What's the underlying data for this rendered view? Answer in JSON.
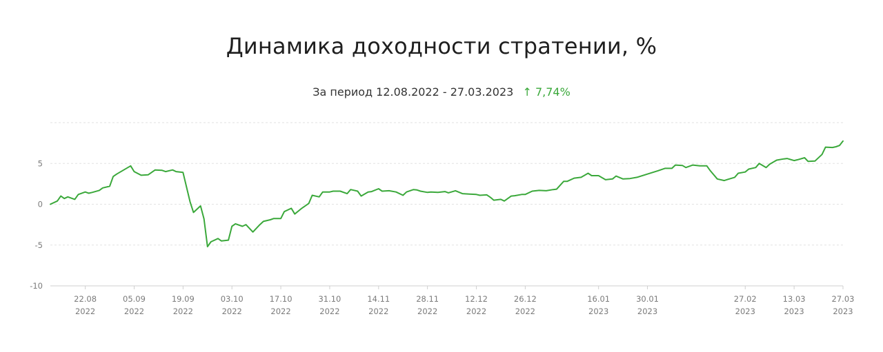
{
  "header": {
    "title": "Динамика доходности стратении, %",
    "period_label": "За период 12.08.2022 - 27.03.2023",
    "change_arrow": "↑",
    "change_value": "7,74%"
  },
  "colors": {
    "line": "#3aa83a",
    "grid": "#e2e2e2",
    "tick_text": "#7a7a7a",
    "positive": "#3aa83a"
  },
  "chart_data": {
    "type": "line",
    "title": "Динамика доходности стратении, %",
    "xlabel": "",
    "ylabel": "",
    "ylim": [
      -10,
      10
    ],
    "y_ticks": [
      -10,
      -5,
      0,
      5
    ],
    "grid": true,
    "x_domain": [
      "2022-08-12",
      "2023-03-27"
    ],
    "x_ticks": [
      {
        "date": "2022-08-22",
        "line1": "22.08",
        "line2": "2022"
      },
      {
        "date": "2022-09-05",
        "line1": "05.09",
        "line2": "2022"
      },
      {
        "date": "2022-09-19",
        "line1": "19.09",
        "line2": "2022"
      },
      {
        "date": "2022-10-03",
        "line1": "03.10",
        "line2": "2022"
      },
      {
        "date": "2022-10-17",
        "line1": "17.10",
        "line2": "2022"
      },
      {
        "date": "2022-10-31",
        "line1": "31.10",
        "line2": "2022"
      },
      {
        "date": "2022-11-14",
        "line1": "14.11",
        "line2": "2022"
      },
      {
        "date": "2022-11-28",
        "line1": "28.11",
        "line2": "2022"
      },
      {
        "date": "2022-12-12",
        "line1": "12.12",
        "line2": "2022"
      },
      {
        "date": "2022-12-26",
        "line1": "26.12",
        "line2": "2022"
      },
      {
        "date": "2023-01-16",
        "line1": "16.01",
        "line2": "2023"
      },
      {
        "date": "2023-01-30",
        "line1": "30.01",
        "line2": "2023"
      },
      {
        "date": "2023-02-27",
        "line1": "27.02",
        "line2": "2023"
      },
      {
        "date": "2023-03-13",
        "line1": "13.03",
        "line2": "2023"
      },
      {
        "date": "2023-03-27",
        "line1": "27.03",
        "line2": "2023"
      }
    ],
    "series": [
      {
        "points": [
          [
            "2022-08-12",
            0.0
          ],
          [
            "2022-08-14",
            0.4
          ],
          [
            "2022-08-15",
            1.0
          ],
          [
            "2022-08-16",
            0.7
          ],
          [
            "2022-08-17",
            0.9
          ],
          [
            "2022-08-19",
            0.6
          ],
          [
            "2022-08-20",
            1.2
          ],
          [
            "2022-08-22",
            1.5
          ],
          [
            "2022-08-23",
            1.35
          ],
          [
            "2022-08-24",
            1.45
          ],
          [
            "2022-08-26",
            1.7
          ],
          [
            "2022-08-27",
            2.0
          ],
          [
            "2022-08-29",
            2.2
          ],
          [
            "2022-08-30",
            3.4
          ],
          [
            "2022-08-31",
            3.7
          ],
          [
            "2022-09-04",
            4.7
          ],
          [
            "2022-09-05",
            4.0
          ],
          [
            "2022-09-07",
            3.55
          ],
          [
            "2022-09-09",
            3.6
          ],
          [
            "2022-09-11",
            4.2
          ],
          [
            "2022-09-13",
            4.15
          ],
          [
            "2022-09-14",
            4.0
          ],
          [
            "2022-09-16",
            4.2
          ],
          [
            "2022-09-17",
            4.0
          ],
          [
            "2022-09-19",
            3.9
          ],
          [
            "2022-09-21",
            0.3
          ],
          [
            "2022-09-22",
            -1.0
          ],
          [
            "2022-09-24",
            -0.2
          ],
          [
            "2022-09-25",
            -1.8
          ],
          [
            "2022-09-26",
            -5.2
          ],
          [
            "2022-09-27",
            -4.6
          ],
          [
            "2022-09-29",
            -4.2
          ],
          [
            "2022-09-30",
            -4.5
          ],
          [
            "2022-10-02",
            -4.4
          ],
          [
            "2022-10-03",
            -2.7
          ],
          [
            "2022-10-04",
            -2.4
          ],
          [
            "2022-10-06",
            -2.7
          ],
          [
            "2022-10-07",
            -2.5
          ],
          [
            "2022-10-09",
            -3.4
          ],
          [
            "2022-10-11",
            -2.5
          ],
          [
            "2022-10-12",
            -2.1
          ],
          [
            "2022-10-14",
            -1.9
          ],
          [
            "2022-10-15",
            -1.75
          ],
          [
            "2022-10-17",
            -1.75
          ],
          [
            "2022-10-18",
            -0.9
          ],
          [
            "2022-10-20",
            -0.5
          ],
          [
            "2022-10-21",
            -1.2
          ],
          [
            "2022-10-23",
            -0.5
          ],
          [
            "2022-10-25",
            0.1
          ],
          [
            "2022-10-26",
            1.1
          ],
          [
            "2022-10-28",
            0.9
          ],
          [
            "2022-10-29",
            1.5
          ],
          [
            "2022-10-31",
            1.5
          ],
          [
            "2022-11-01",
            1.6
          ],
          [
            "2022-11-03",
            1.6
          ],
          [
            "2022-11-05",
            1.3
          ],
          [
            "2022-11-06",
            1.8
          ],
          [
            "2022-11-08",
            1.6
          ],
          [
            "2022-11-09",
            1.0
          ],
          [
            "2022-11-11",
            1.5
          ],
          [
            "2022-11-12",
            1.55
          ],
          [
            "2022-11-14",
            1.9
          ],
          [
            "2022-11-15",
            1.6
          ],
          [
            "2022-11-17",
            1.65
          ],
          [
            "2022-11-19",
            1.5
          ],
          [
            "2022-11-21",
            1.1
          ],
          [
            "2022-11-22",
            1.5
          ],
          [
            "2022-11-24",
            1.8
          ],
          [
            "2022-11-25",
            1.75
          ],
          [
            "2022-11-26",
            1.6
          ],
          [
            "2022-11-28",
            1.45
          ],
          [
            "2022-11-29",
            1.5
          ],
          [
            "2022-12-01",
            1.45
          ],
          [
            "2022-12-03",
            1.55
          ],
          [
            "2022-12-04",
            1.4
          ],
          [
            "2022-12-06",
            1.65
          ],
          [
            "2022-12-08",
            1.3
          ],
          [
            "2022-12-10",
            1.25
          ],
          [
            "2022-12-12",
            1.2
          ],
          [
            "2022-12-13",
            1.1
          ],
          [
            "2022-12-15",
            1.15
          ],
          [
            "2022-12-16",
            0.85
          ],
          [
            "2022-12-17",
            0.5
          ],
          [
            "2022-12-19",
            0.6
          ],
          [
            "2022-12-20",
            0.4
          ],
          [
            "2022-12-22",
            1.0
          ],
          [
            "2022-12-23",
            1.05
          ],
          [
            "2022-12-25",
            1.2
          ],
          [
            "2022-12-26",
            1.2
          ],
          [
            "2022-12-28",
            1.6
          ],
          [
            "2022-12-30",
            1.7
          ],
          [
            "2023-01-01",
            1.65
          ],
          [
            "2023-01-03",
            1.8
          ],
          [
            "2023-01-04",
            1.85
          ],
          [
            "2023-01-06",
            2.8
          ],
          [
            "2023-01-07",
            2.8
          ],
          [
            "2023-01-09",
            3.2
          ],
          [
            "2023-01-11",
            3.3
          ],
          [
            "2023-01-13",
            3.8
          ],
          [
            "2023-01-14",
            3.5
          ],
          [
            "2023-01-16",
            3.5
          ],
          [
            "2023-01-18",
            3.0
          ],
          [
            "2023-01-20",
            3.1
          ],
          [
            "2023-01-21",
            3.45
          ],
          [
            "2023-01-23",
            3.1
          ],
          [
            "2023-01-25",
            3.15
          ],
          [
            "2023-01-27",
            3.3
          ],
          [
            "2023-01-30",
            3.7
          ],
          [
            "2023-02-02",
            4.1
          ],
          [
            "2023-02-04",
            4.4
          ],
          [
            "2023-02-06",
            4.4
          ],
          [
            "2023-02-07",
            4.8
          ],
          [
            "2023-02-09",
            4.75
          ],
          [
            "2023-02-10",
            4.5
          ],
          [
            "2023-02-12",
            4.8
          ],
          [
            "2023-02-14",
            4.7
          ],
          [
            "2023-02-16",
            4.7
          ],
          [
            "2023-02-17",
            4.1
          ],
          [
            "2023-02-19",
            3.1
          ],
          [
            "2023-02-21",
            2.9
          ],
          [
            "2023-02-22",
            3.05
          ],
          [
            "2023-02-24",
            3.3
          ],
          [
            "2023-02-25",
            3.8
          ],
          [
            "2023-02-27",
            3.95
          ],
          [
            "2023-02-28",
            4.3
          ],
          [
            "2023-03-02",
            4.5
          ],
          [
            "2023-03-03",
            5.0
          ],
          [
            "2023-03-05",
            4.5
          ],
          [
            "2023-03-06",
            4.9
          ],
          [
            "2023-03-08",
            5.4
          ],
          [
            "2023-03-10",
            5.55
          ],
          [
            "2023-03-11",
            5.6
          ],
          [
            "2023-03-13",
            5.35
          ],
          [
            "2023-03-14",
            5.45
          ],
          [
            "2023-03-16",
            5.7
          ],
          [
            "2023-03-17",
            5.25
          ],
          [
            "2023-03-19",
            5.3
          ],
          [
            "2023-03-21",
            6.1
          ],
          [
            "2023-03-22",
            7.0
          ],
          [
            "2023-03-24",
            6.95
          ],
          [
            "2023-03-25",
            7.05
          ],
          [
            "2023-03-26",
            7.2
          ],
          [
            "2023-03-27",
            7.74
          ]
        ]
      }
    ]
  }
}
